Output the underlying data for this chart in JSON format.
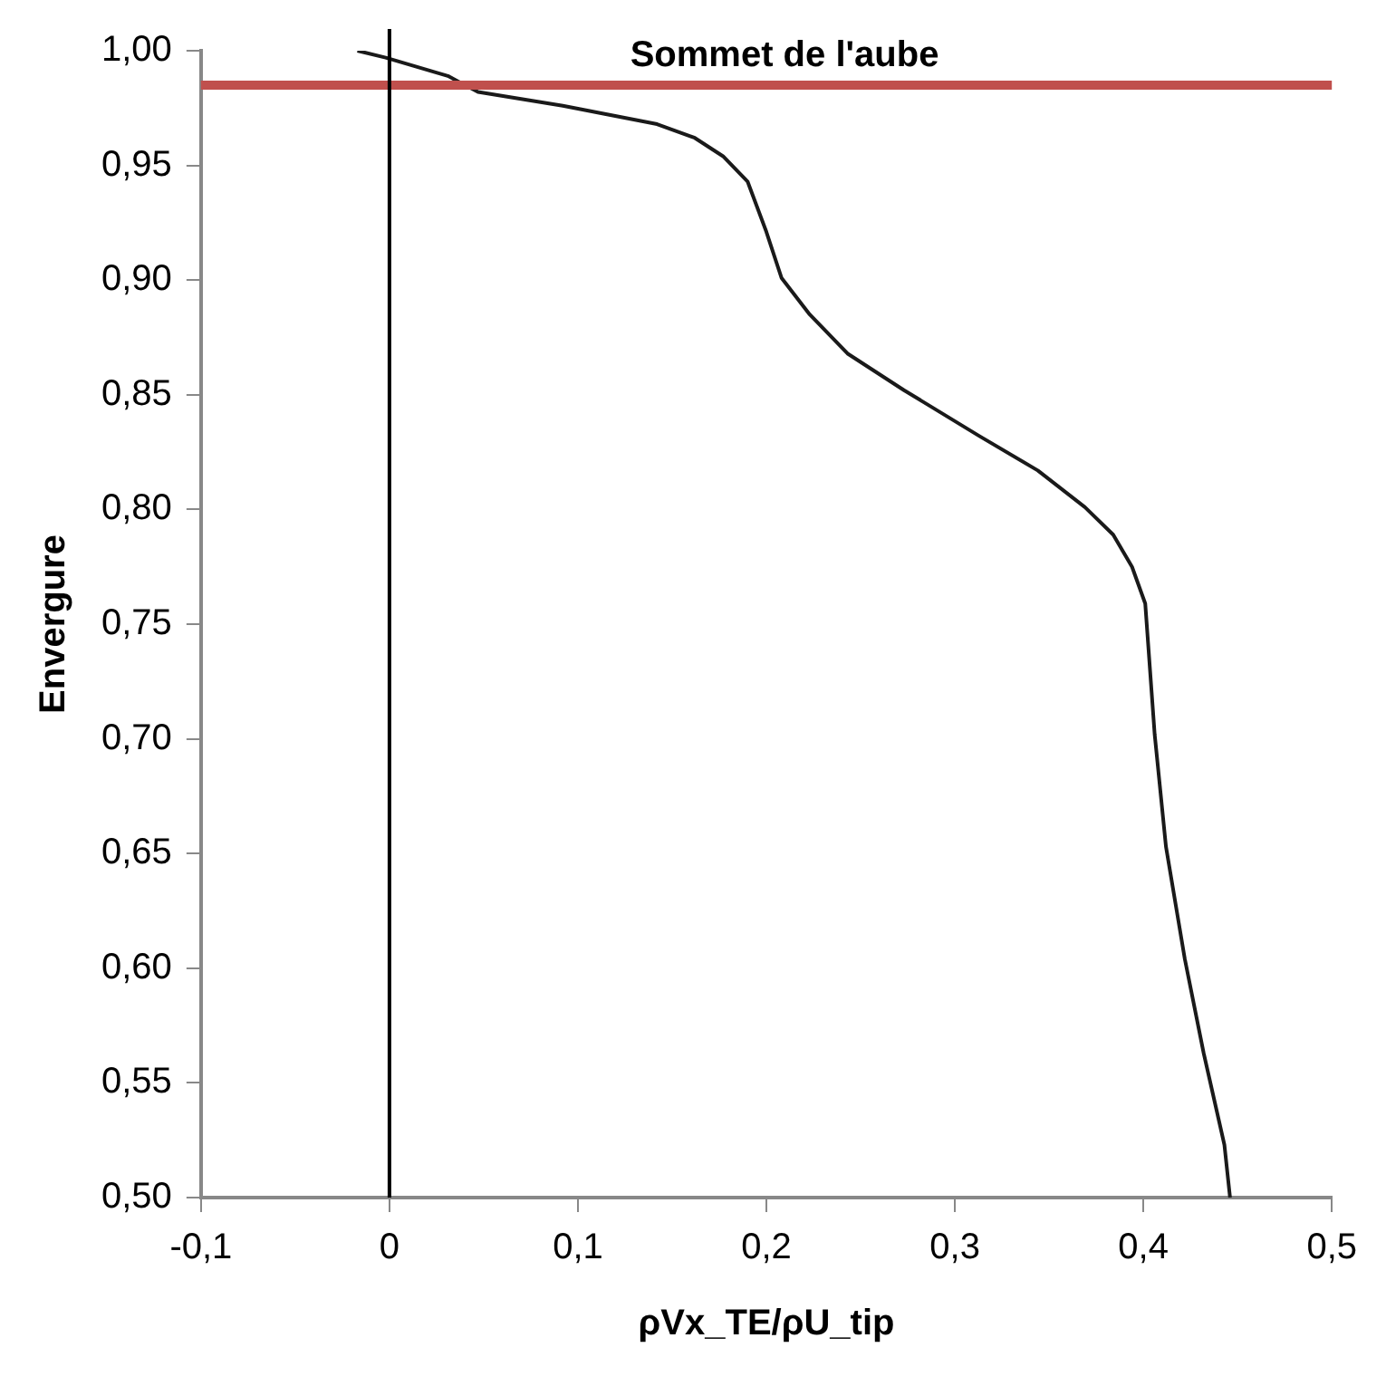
{
  "chart_data": {
    "type": "line",
    "xlabel": "ρVx_TE/ρU_tip",
    "ylabel": "Envergure",
    "x": [
      -0.017,
      -0.002,
      0.031,
      0.047,
      0.092,
      0.142,
      0.162,
      0.177,
      0.19,
      0.2,
      0.208,
      0.223,
      0.243,
      0.273,
      0.313,
      0.344,
      0.369,
      0.384,
      0.394,
      0.401,
      0.406,
      0.412,
      0.422,
      0.432,
      0.443,
      0.446
    ],
    "series": [
      {
        "color": "#1a1a1a",
        "values": [
          1.0,
          0.997,
          0.989,
          0.982,
          0.976,
          0.968,
          0.962,
          0.954,
          0.943,
          0.921,
          0.901,
          0.885,
          0.868,
          0.852,
          0.832,
          0.817,
          0.801,
          0.789,
          0.775,
          0.759,
          0.702,
          0.653,
          0.604,
          0.563,
          0.523,
          0.5
        ]
      }
    ],
    "xlim": [
      -0.1,
      0.5
    ],
    "xticks": [
      {
        "value": -0.1,
        "label": "-0,1"
      },
      0,
      {
        "value": 0.1,
        "label": "0,1"
      },
      {
        "value": 0.2,
        "label": "0,2"
      },
      {
        "value": 0.3,
        "label": "0,3"
      },
      {
        "value": 0.4,
        "label": "0,4"
      },
      {
        "value": 0.5,
        "label": "0,5"
      }
    ],
    "ylim": [
      0.5,
      1.0
    ],
    "yticks": [
      {
        "value": 0.5,
        "label": "0,50"
      },
      {
        "value": 0.55,
        "label": "0,55"
      },
      {
        "value": 0.6,
        "label": "0,60"
      },
      {
        "value": 0.65,
        "label": "0,65"
      },
      {
        "value": 0.7,
        "label": "0,70"
      },
      {
        "value": 0.75,
        "label": "0,75"
      },
      {
        "value": 0.8,
        "label": "0,80"
      },
      {
        "value": 0.85,
        "label": "0,85"
      },
      {
        "value": 0.9,
        "label": "0,90"
      },
      {
        "value": 0.95,
        "label": "0,95"
      },
      {
        "value": 1.0,
        "label": "1,00"
      }
    ],
    "ref_lines": [
      {
        "axis": "y",
        "value": 0.985,
        "label": "Sommet de l'aube",
        "color": "#c0504d"
      },
      {
        "axis": "x",
        "value": 0,
        "color": "#000000"
      }
    ],
    "grid": false,
    "legend": false,
    "marker": "none",
    "line_style": "solid"
  }
}
